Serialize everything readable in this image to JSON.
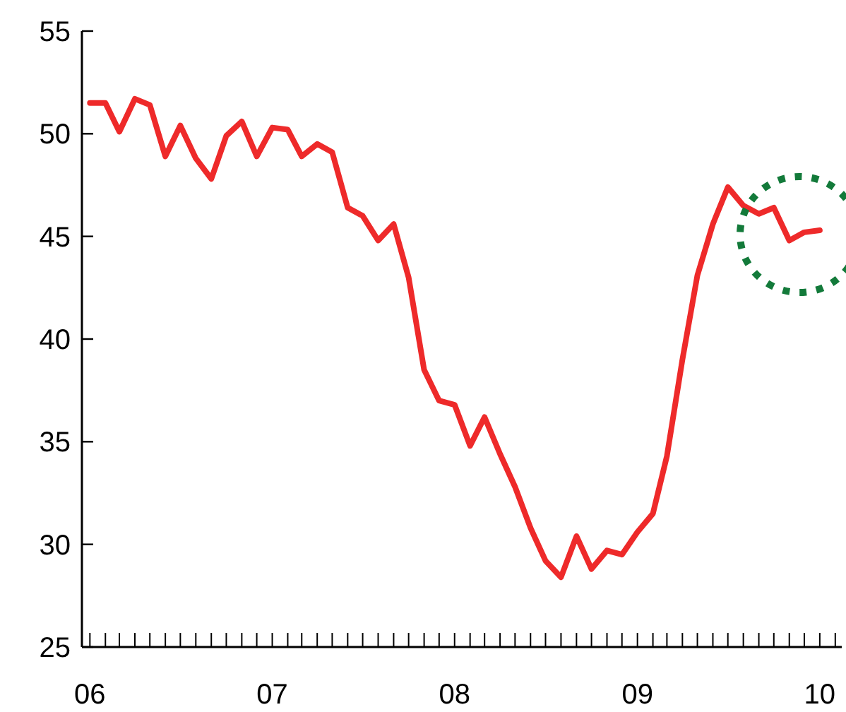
{
  "chart_data": {
    "type": "line",
    "x": [
      "2006-01",
      "2006-02",
      "2006-03",
      "2006-04",
      "2006-05",
      "2006-06",
      "2006-07",
      "2006-08",
      "2006-09",
      "2006-10",
      "2006-11",
      "2006-12",
      "2007-01",
      "2007-02",
      "2007-03",
      "2007-04",
      "2007-05",
      "2007-06",
      "2007-07",
      "2007-08",
      "2007-09",
      "2007-10",
      "2007-11",
      "2007-12",
      "2008-01",
      "2008-02",
      "2008-03",
      "2008-04",
      "2008-05",
      "2008-06",
      "2008-07",
      "2008-08",
      "2008-09",
      "2008-10",
      "2008-11",
      "2008-12",
      "2009-01",
      "2009-02",
      "2009-03",
      "2009-04",
      "2009-05",
      "2009-06",
      "2009-07",
      "2009-08",
      "2009-09",
      "2009-10",
      "2009-11",
      "2009-12",
      "2010-01"
    ],
    "series": [
      {
        "color": "#ee2a2a",
        "values": [
          51.5,
          51.5,
          50.1,
          51.7,
          51.4,
          48.9,
          50.4,
          48.8,
          47.8,
          49.9,
          50.6,
          48.9,
          50.3,
          50.2,
          48.9,
          49.5,
          49.1,
          46.4,
          46.0,
          44.8,
          45.6,
          43.0,
          38.5,
          37.0,
          36.8,
          34.8,
          36.2,
          34.4,
          32.8,
          30.8,
          29.2,
          28.4,
          30.4,
          28.8,
          29.7,
          29.5,
          30.6,
          31.5,
          34.3,
          39.0,
          43.1,
          45.6,
          47.4,
          46.5,
          46.1,
          46.4,
          44.8,
          45.2,
          45.3
        ]
      }
    ],
    "xlim": [
      "2005-12-16",
      "2010-02-14"
    ],
    "xticks": [
      {
        "value": "2006-01",
        "label": "06"
      },
      {
        "value": "2006-02",
        "label": null
      },
      {
        "value": "2006-03",
        "label": null
      },
      {
        "value": "2006-04",
        "label": null
      },
      {
        "value": "2006-05",
        "label": null
      },
      {
        "value": "2006-06",
        "label": null
      },
      {
        "value": "2006-07",
        "label": null
      },
      {
        "value": "2006-08",
        "label": null
      },
      {
        "value": "2006-09",
        "label": null
      },
      {
        "value": "2006-10",
        "label": null
      },
      {
        "value": "2006-11",
        "label": null
      },
      {
        "value": "2006-12",
        "label": null
      },
      {
        "value": "2007-01",
        "label": "07"
      },
      {
        "value": "2007-02",
        "label": null
      },
      {
        "value": "2007-03",
        "label": null
      },
      {
        "value": "2007-04",
        "label": null
      },
      {
        "value": "2007-05",
        "label": null
      },
      {
        "value": "2007-06",
        "label": null
      },
      {
        "value": "2007-07",
        "label": null
      },
      {
        "value": "2007-08",
        "label": null
      },
      {
        "value": "2007-09",
        "label": null
      },
      {
        "value": "2007-10",
        "label": null
      },
      {
        "value": "2007-11",
        "label": null
      },
      {
        "value": "2007-12",
        "label": null
      },
      {
        "value": "2008-01",
        "label": "08"
      },
      {
        "value": "2008-02",
        "label": null
      },
      {
        "value": "2008-03",
        "label": null
      },
      {
        "value": "2008-04",
        "label": null
      },
      {
        "value": "2008-05",
        "label": null
      },
      {
        "value": "2008-06",
        "label": null
      },
      {
        "value": "2008-07",
        "label": null
      },
      {
        "value": "2008-08",
        "label": null
      },
      {
        "value": "2008-09",
        "label": null
      },
      {
        "value": "2008-10",
        "label": null
      },
      {
        "value": "2008-11",
        "label": null
      },
      {
        "value": "2008-12",
        "label": null
      },
      {
        "value": "2009-01",
        "label": "09"
      },
      {
        "value": "2009-02",
        "label": null
      },
      {
        "value": "2009-03",
        "label": null
      },
      {
        "value": "2009-04",
        "label": null
      },
      {
        "value": "2009-05",
        "label": null
      },
      {
        "value": "2009-06",
        "label": null
      },
      {
        "value": "2009-07",
        "label": null
      },
      {
        "value": "2009-08",
        "label": null
      },
      {
        "value": "2009-09",
        "label": null
      },
      {
        "value": "2009-10",
        "label": null
      },
      {
        "value": "2009-11",
        "label": null
      },
      {
        "value": "2009-12",
        "label": null
      },
      {
        "value": "2010-01",
        "label": "10"
      },
      {
        "value": "2010-02",
        "label": null
      }
    ],
    "ylim": [
      25,
      55
    ],
    "yticks": [
      25,
      30,
      35,
      40,
      45,
      50,
      55
    ],
    "grid": false,
    "marker": "none",
    "line_style": "solid"
  }
}
